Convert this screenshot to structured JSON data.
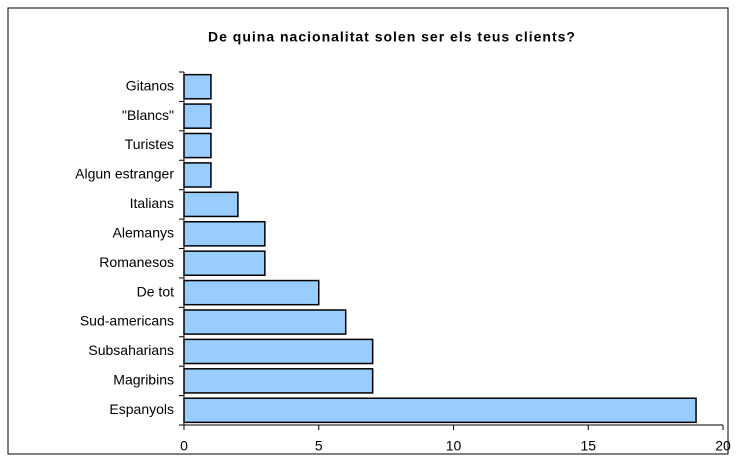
{
  "chart_data": {
    "type": "bar",
    "orientation": "horizontal",
    "title": "De quina nacionalitat solen ser els teus clients?",
    "categories": [
      "Gitanos",
      "\"Blancs\"",
      "Turistes",
      "Algun estranger",
      "Italians",
      "Alemanys",
      "Romanesos",
      "De tot",
      "Sud-americans",
      "Subsaharians",
      "Magribins",
      "Espanyols"
    ],
    "values": [
      1,
      1,
      1,
      1,
      2,
      3,
      3,
      5,
      6,
      7,
      7,
      19
    ],
    "color": "#99ccff",
    "xlim": [
      0,
      20
    ],
    "xticks": [
      0,
      5,
      10,
      15,
      20
    ],
    "grid": false
  }
}
